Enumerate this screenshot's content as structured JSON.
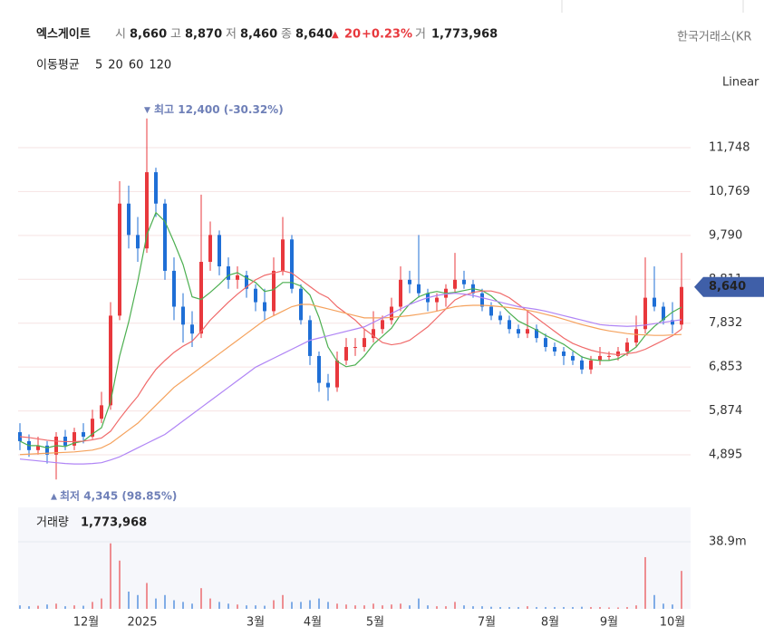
{
  "header": {
    "name": "엑스게이트",
    "open_label": "시",
    "open": "8,660",
    "high_label": "고",
    "high": "8,870",
    "low_label": "저",
    "low": "8,460",
    "close_label": "종",
    "close": "8,640",
    "change_arrow": "▲",
    "change": "20",
    "change_pct": "+0.23%",
    "volume_label": "거",
    "volume": "1,773,968",
    "exchange": "한국거래소(KR"
  },
  "chart_data": {
    "type": "candlestick",
    "scale": "Linear",
    "up_color": "#e8383d",
    "down_color": "#1f6fd6",
    "ylim": [
      3925,
      13021
    ],
    "yticks": [
      {
        "value": 4895,
        "label": "4,895"
      },
      {
        "value": 5874,
        "label": "5,874"
      },
      {
        "value": 6853,
        "label": "6,853"
      },
      {
        "value": 7832,
        "label": "7,832"
      },
      {
        "value": 8811,
        "label": "8,811"
      },
      {
        "value": 9790,
        "label": "9,790"
      },
      {
        "value": 10769,
        "label": "10,769"
      },
      {
        "value": 11748,
        "label": "11,748"
      }
    ],
    "grid": true,
    "x_labels": [
      {
        "index": 7.3,
        "label": "12월"
      },
      {
        "index": 13.5,
        "label": "2025"
      },
      {
        "index": 26,
        "label": "3월"
      },
      {
        "index": 32.3,
        "label": "4월"
      },
      {
        "index": 39.2,
        "label": "5월"
      },
      {
        "index": 51.5,
        "label": "7월"
      },
      {
        "index": 58.5,
        "label": "8월"
      },
      {
        "index": 65,
        "label": "9월"
      },
      {
        "index": 72,
        "label": "10월"
      }
    ],
    "ohlc": [
      [
        5400,
        5600,
        5000,
        5200
      ],
      [
        5200,
        5350,
        4850,
        5000
      ],
      [
        5000,
        5300,
        4900,
        5100
      ],
      [
        5100,
        5200,
        4700,
        4900
      ],
      [
        4900,
        5400,
        4345,
        5300
      ],
      [
        5300,
        5450,
        5000,
        5100
      ],
      [
        5100,
        5500,
        5000,
        5400
      ],
      [
        5400,
        5600,
        5150,
        5300
      ],
      [
        5300,
        5900,
        5250,
        5700
      ],
      [
        5700,
        6300,
        5600,
        6000
      ],
      [
        6000,
        8300,
        5900,
        8000
      ],
      [
        8000,
        11000,
        7900,
        10500
      ],
      [
        10500,
        10900,
        9500,
        9800
      ],
      [
        9800,
        10200,
        9200,
        9500
      ],
      [
        9500,
        12400,
        9400,
        11200
      ],
      [
        11200,
        11300,
        10200,
        10500
      ],
      [
        10500,
        10600,
        8800,
        9000
      ],
      [
        9000,
        9300,
        7900,
        8200
      ],
      [
        8200,
        8500,
        7400,
        7800
      ],
      [
        7800,
        8100,
        7300,
        7600
      ],
      [
        7600,
        10700,
        7500,
        9200
      ],
      [
        9200,
        10100,
        9000,
        9800
      ],
      [
        9800,
        9900,
        8900,
        9100
      ],
      [
        9100,
        9300,
        8600,
        8800
      ],
      [
        8800,
        9100,
        8600,
        8900
      ],
      [
        8900,
        9000,
        8400,
        8600
      ],
      [
        8600,
        8700,
        8100,
        8300
      ],
      [
        8300,
        8600,
        7900,
        8100
      ],
      [
        8100,
        9300,
        8000,
        9000
      ],
      [
        9000,
        10200,
        8900,
        9700
      ],
      [
        9700,
        9800,
        8500,
        8600
      ],
      [
        8600,
        8700,
        7800,
        7900
      ],
      [
        7900,
        8000,
        6900,
        7100
      ],
      [
        7100,
        7200,
        6300,
        6500
      ],
      [
        6500,
        6700,
        6100,
        6400
      ],
      [
        6400,
        7200,
        6300,
        7000
      ],
      [
        7000,
        7500,
        6900,
        7300
      ],
      [
        7300,
        7500,
        7100,
        7300
      ],
      [
        7300,
        7700,
        7200,
        7500
      ],
      [
        7500,
        8100,
        7400,
        7700
      ],
      [
        7700,
        8000,
        7600,
        7900
      ],
      [
        7900,
        8400,
        7800,
        8200
      ],
      [
        8200,
        9100,
        8100,
        8800
      ],
      [
        8800,
        9000,
        8500,
        8700
      ],
      [
        8700,
        9800,
        8400,
        8500
      ],
      [
        8500,
        8600,
        8100,
        8300
      ],
      [
        8300,
        8500,
        8100,
        8400
      ],
      [
        8400,
        8700,
        8200,
        8600
      ],
      [
        8600,
        9400,
        8500,
        8800
      ],
      [
        8800,
        9000,
        8600,
        8700
      ],
      [
        8700,
        8800,
        8400,
        8500
      ],
      [
        8500,
        8600,
        8100,
        8200
      ],
      [
        8200,
        8300,
        7900,
        8000
      ],
      [
        8000,
        8100,
        7800,
        7900
      ],
      [
        7900,
        8000,
        7600,
        7700
      ],
      [
        7700,
        7800,
        7500,
        7600
      ],
      [
        7600,
        8100,
        7500,
        7700
      ],
      [
        7700,
        7800,
        7400,
        7500
      ],
      [
        7500,
        7600,
        7200,
        7300
      ],
      [
        7300,
        7400,
        7100,
        7200
      ],
      [
        7200,
        7300,
        6900,
        7100
      ],
      [
        7100,
        7200,
        6900,
        7000
      ],
      [
        7000,
        7100,
        6700,
        6800
      ],
      [
        6800,
        7100,
        6700,
        7000
      ],
      [
        7000,
        7300,
        6900,
        7100
      ],
      [
        7100,
        7200,
        7000,
        7100
      ],
      [
        7100,
        7300,
        7000,
        7200
      ],
      [
        7200,
        7500,
        7100,
        7400
      ],
      [
        7400,
        8000,
        7300,
        7700
      ],
      [
        7700,
        9300,
        7600,
        8400
      ],
      [
        8400,
        9100,
        8100,
        8200
      ],
      [
        8200,
        8300,
        7800,
        7900
      ],
      [
        7900,
        8300,
        7600,
        7800
      ],
      [
        7800,
        9400,
        7700,
        8640
      ]
    ],
    "moving_averages": {
      "title": "이동평균",
      "series": [
        {
          "name": "5",
          "color": "#4caf50",
          "values": [
            5200,
            5100,
            5100,
            5050,
            5100,
            5080,
            5160,
            5200,
            5360,
            5500,
            6080,
            7100,
            7860,
            8760,
            9800,
            10300,
            10100,
            9640,
            9140,
            8420,
            8360,
            8520,
            8700,
            8900,
            8960,
            8840,
            8740,
            8540,
            8580,
            8740,
            8740,
            8660,
            8460,
            7960,
            7300,
            6980,
            6860,
            6900,
            7100,
            7360,
            7540,
            7720,
            8020,
            8260,
            8420,
            8500,
            8540,
            8500,
            8520,
            8560,
            8600,
            8560,
            8440,
            8260,
            8060,
            7880,
            7780,
            7680,
            7560,
            7460,
            7360,
            7220,
            7080,
            7020,
            7000,
            7000,
            7040,
            7160,
            7300,
            7560,
            7760,
            7920,
            8080,
            8190
          ]
        },
        {
          "name": "20",
          "color": "#f06a6a",
          "values": [
            5300,
            5280,
            5250,
            5220,
            5200,
            5190,
            5190,
            5200,
            5230,
            5270,
            5420,
            5700,
            5960,
            6200,
            6520,
            6800,
            7000,
            7180,
            7320,
            7430,
            7650,
            7900,
            8100,
            8300,
            8480,
            8640,
            8800,
            8900,
            8950,
            9000,
            8950,
            8800,
            8650,
            8500,
            8400,
            8200,
            8050,
            7900,
            7700,
            7550,
            7400,
            7350,
            7380,
            7450,
            7600,
            7750,
            7950,
            8150,
            8350,
            8450,
            8520,
            8550,
            8550,
            8500,
            8400,
            8250,
            8100,
            7950,
            7800,
            7650,
            7500,
            7380,
            7300,
            7230,
            7180,
            7150,
            7130,
            7150,
            7180,
            7250,
            7350,
            7450,
            7550,
            7700
          ]
        },
        {
          "name": "60",
          "color": "#f5a25d",
          "values": [
            4900,
            4910,
            4920,
            4930,
            4940,
            4950,
            4960,
            4980,
            5000,
            5050,
            5150,
            5300,
            5450,
            5600,
            5800,
            6000,
            6200,
            6400,
            6550,
            6700,
            6850,
            7000,
            7150,
            7300,
            7450,
            7600,
            7750,
            7900,
            8000,
            8100,
            8200,
            8250,
            8250,
            8200,
            8150,
            8100,
            8050,
            8000,
            7950,
            7950,
            7950,
            7960,
            7980,
            8000,
            8030,
            8060,
            8100,
            8150,
            8200,
            8220,
            8230,
            8230,
            8220,
            8200,
            8180,
            8150,
            8120,
            8080,
            8030,
            7980,
            7920,
            7860,
            7800,
            7750,
            7700,
            7660,
            7630,
            7600,
            7580,
            7570,
            7560,
            7560,
            7570,
            7580
          ]
        },
        {
          "name": "120",
          "color": "#b085f5",
          "values": [
            4800,
            4780,
            4760,
            4740,
            4720,
            4700,
            4690,
            4690,
            4700,
            4720,
            4780,
            4850,
            4950,
            5050,
            5150,
            5250,
            5350,
            5500,
            5650,
            5800,
            5950,
            6100,
            6250,
            6400,
            6550,
            6700,
            6850,
            6950,
            7050,
            7150,
            7250,
            7350,
            7450,
            7500,
            7550,
            7600,
            7650,
            7700,
            7750,
            7850,
            7950,
            8050,
            8150,
            8250,
            8330,
            8400,
            8450,
            8480,
            8500,
            8480,
            8450,
            8400,
            8350,
            8300,
            8250,
            8200,
            8170,
            8140,
            8100,
            8050,
            8000,
            7950,
            7900,
            7850,
            7800,
            7780,
            7770,
            7760,
            7770,
            7790,
            7820,
            7850,
            7880,
            7910
          ]
        }
      ]
    },
    "volume": {
      "title": "거래량",
      "last": "1,773,968",
      "ylim": [
        0,
        58.9
      ],
      "yticks": [
        {
          "value": 38.9,
          "label": "38.9m"
        }
      ],
      "values": [
        2,
        1.5,
        1.8,
        2.5,
        3,
        1.5,
        2,
        1.8,
        4,
        6,
        38,
        28,
        10,
        8,
        15,
        6,
        8,
        5,
        4,
        3,
        12,
        6,
        4,
        3,
        2.5,
        2,
        2,
        1.8,
        5,
        8,
        4,
        4,
        5,
        6,
        4,
        3,
        2.5,
        2,
        2,
        3,
        2,
        2.5,
        3,
        2,
        6,
        2,
        1.5,
        1.5,
        4,
        2,
        1.5,
        1.5,
        1.2,
        1,
        1,
        1,
        1.5,
        1,
        1,
        1,
        1,
        1,
        1.2,
        1,
        1,
        0.8,
        0.8,
        1,
        2,
        30,
        8,
        3,
        2.5,
        22
      ]
    },
    "high_annotation": {
      "index": 14,
      "value": 12400,
      "label": "최고 12,400 (-30.32%)"
    },
    "low_annotation": {
      "index": 4,
      "value": 4345,
      "label": "최저 4,345 (98.85%)"
    },
    "last_price": {
      "value": 8640,
      "label": "8,640"
    }
  }
}
